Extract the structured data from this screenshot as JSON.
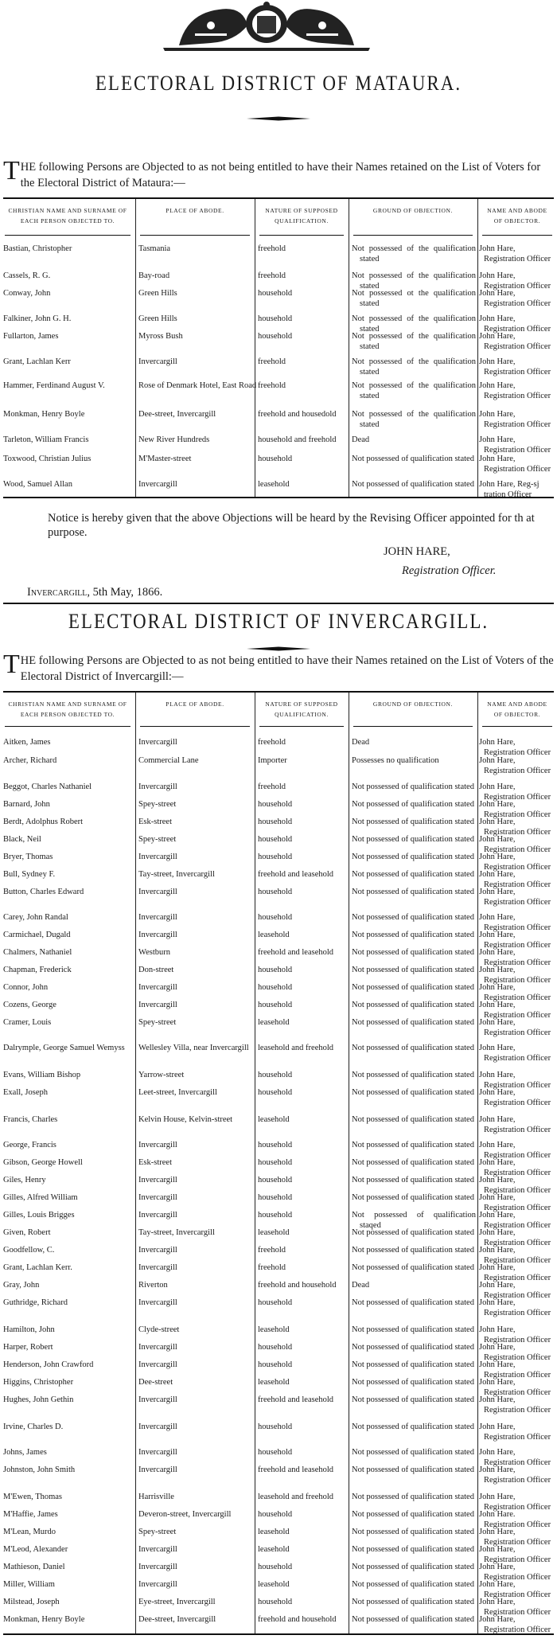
{
  "mataura": {
    "title": "ELECTORAL DISTRICT OF MATAURA.",
    "intro_first": "T",
    "intro_rest": "HE following Persons are Objected to as not being entitled to have their Names retained on the List of Voters for the Electoral District of Mataura:—",
    "headers": [
      "Christian name and surname of each person objected to.",
      "Place of abode.",
      "Nature of supposed qualification.",
      "Ground of objection.",
      "Name and abode of objector."
    ],
    "rows": [
      [
        "Bastian, Christopher",
        "Tasmania",
        "freehold",
        "Not possessed of the qualification stated",
        "John Hare, Registration Officer"
      ],
      [
        "Cassels, R. G.",
        "Bay-road",
        "freehold",
        "Not possessed of the qualification stated",
        "John Hare, Registration Officer"
      ],
      [
        "Conway, John",
        "Green Hills",
        "household",
        "Not possessed ot the qualification stated",
        "John Hare, Registration Officer"
      ],
      [
        "Falkiner, John G. H.",
        "Green Hills",
        "household",
        "Not possessed of the qualification stated",
        "John Hare, Registration Officer"
      ],
      [
        "Fullarton, James",
        "Myross Bush",
        "household",
        "Not possessed of the qualification stated",
        "John Hare, Registration Officer"
      ],
      [
        "Grant, Lachlan Kerr",
        "Invercargill",
        "freehold",
        "Not possessed of the qualification stated",
        "John Hare, Registration Officer"
      ],
      [
        "Hammer, Ferdinand August V.",
        "Rose of Denmark Hotel, East Road",
        "freehold",
        "Not possessed of the qualification stated",
        "John Hare, Registration Officer"
      ],
      [
        "Monkman, Henry Boyle",
        "Dee-street, Invercargill",
        "freehold and housedold",
        "Not possessed of the qualification stated",
        "John Hare, Registration Officer"
      ],
      [
        "Tarleton, William Francis",
        "New River Hundreds",
        "household and freehold",
        "Dead",
        "John Hare, Registration Officer"
      ],
      [
        "Toxwood, Christian Julius",
        "M'Master-street",
        "household",
        "Not possessed of qualification stated",
        "John Hare, Registration Officer"
      ],
      [
        "Wood, Samuel Allan",
        "Invercargill",
        "leasehold",
        "Not possessed of qualification stated",
        "John Hare, Reg-sj tration Officer"
      ]
    ],
    "notice": "Notice is hereby given that the above Objections will be heard by the Revising Officer appointed for th at purpose.",
    "signature": "JOHN HARE,",
    "signature_title": "Registration Officer.",
    "dateline_place": "Invercargill,",
    "dateline_date": "5th May, 1866."
  },
  "invercargill": {
    "title": "ELECTORAL DISTRICT OF INVERCARGILL.",
    "intro_first": "T",
    "intro_rest": "HE following Persons are Objected to as not being entitled to have their Names retained on the List of Voters of the Electoral District of Invercargill:—",
    "headers": [
      "Christian name and surname of each person objected to.",
      "Place of abode.",
      "Nature of supposed qualification.",
      "Ground of objection.",
      "Name and abode of objector."
    ],
    "rows": [
      [
        "Aitken, James",
        "Invercargill",
        "freehold",
        "Dead",
        "John Hare, Registration Officer"
      ],
      [
        "Archer, Richard",
        "Commercial Lane",
        "Importer",
        "Possesses no qualification",
        "John Hare, Registration Officer"
      ],
      [
        "Beggot, Charles Nathaniel",
        "Invercargill",
        "freehold",
        "Not possessed of qualification stated",
        "John Hare, Registration Officer"
      ],
      [
        "Barnard, John",
        "Spey-street",
        "household",
        "Not possessed of qualification stated",
        "John Hare, Registration Officer"
      ],
      [
        "Berdt, Adolphus Robert",
        "Esk-street",
        "household",
        "Not possessed of qualification stated",
        "John Hare, Registration Officer"
      ],
      [
        "Black, Neil",
        "Spey-street",
        "household",
        "Not possessed of qualification stated",
        "John Hare, Registration Officer"
      ],
      [
        "Bryer, Thomas",
        "Invercargill",
        "household",
        "Not possessed of qualification stated",
        "John Hare, Registration Officer"
      ],
      [
        "Bull, Sydney F.",
        "Tay-street, Invercargill",
        "freehold and leasehold",
        "Not possessed of qualification stated",
        "John Hare, Registration Officer"
      ],
      [
        "Button, Charles Edward",
        "Invercargill",
        "household",
        "Not possessed of qualification stated",
        "John Hare, Registration Officer"
      ],
      [
        "Carey, John Randal",
        "Invercargill",
        "household",
        "Not possessed of qualification stated",
        "John Hare, Registration Officer"
      ],
      [
        "Carmichael, Dugald",
        "Invercargill",
        "leasehold",
        "Not possessed of qualification stated",
        "John Hare, Registration Officer"
      ],
      [
        "Chalmers, Nathaniel",
        "Westburn",
        "freehold and leasehold",
        "Not possessed of qualification stated",
        "John Hare, Registration Officer"
      ],
      [
        "Chapman, Frederick",
        "Don-street",
        "household",
        "Not possessed of qualification stated",
        "John Hare, Registration Officer"
      ],
      [
        "Connor, John",
        "Invercargill",
        "household",
        "Not possessed of qualification stated",
        "John Hare, Registration Officer"
      ],
      [
        "Cozens, George",
        "Invercargill",
        "household",
        "Not possessed of qualification stated",
        "John Hare, Registration Officer"
      ],
      [
        "Cramer, Louis",
        "Spey-street",
        "leasehold",
        "Not possessed of qualification stated",
        "John Hare, Registration Officer"
      ],
      [
        "Dalrymple, George Samuel Wemyss",
        "Wellesley Villa, near Invercargill",
        "leasehold and freehold",
        "Not possessed of qualification stated",
        "John Hare, Registration Officer"
      ],
      [
        "Evans, William Bishop",
        "Yarrow-street",
        "household",
        "Not possessed of qualification stated",
        "John Hare, Registration Officer"
      ],
      [
        "Exall, Joseph",
        "Leet-street, Invercargill",
        "household",
        "Not possessed of qualification stated",
        "John Hare, Registration Officer"
      ],
      [
        "Francis, Charles",
        "Kelvin House, Kelvin-street",
        "leasehold",
        "Not possessed of qualification stated",
        "John Hare, Registration Officer"
      ],
      [
        "George, Francis",
        "Invercargill",
        "household",
        "Not possessed of qualification stated",
        "John Hare, Registration Officer"
      ],
      [
        "Gibson, George Howell",
        "Esk-street",
        "household",
        "Not possessed of qualification stated",
        "John Hare, Registration Officer"
      ],
      [
        "Giles, Henry",
        "Invercargill",
        "household",
        "Not possessed of qualification stated",
        "John Hare, Registration Officer"
      ],
      [
        "Gilles, Alfred William",
        "Invercargill",
        "household",
        "Not possessed of qualification stated",
        "John Hare, Registration Officer"
      ],
      [
        "Gilles, Louis Brigges",
        "Invercargill",
        "household",
        "Not possessed of qualification staqed",
        "John Hare, Registration Officer"
      ],
      [
        "Given, Robert",
        "Tay-street, Invercargill",
        "leasehold",
        "Not possessed of qualification stated",
        "John Hare, Registration Officer"
      ],
      [
        "Goodfellow, C.",
        "Invercargill",
        "freehold",
        "Not possessed of qualification stated",
        "John Hare, Registration Officer"
      ],
      [
        "Grant, Lachlan Kerr.",
        "Invercargill",
        "freehold",
        "Not possessed of qualification stated",
        "John Hare, Registration Officer"
      ],
      [
        "Gray, John",
        "Riverton",
        "freehold and household",
        "Dead",
        "John Hare, Registration Officer"
      ],
      [
        "Guthridge, Richard",
        "Invercargill",
        "household",
        "Not possessed of qualification stated",
        "John Hare, Registration Officer"
      ],
      [
        "Hamilton, John",
        "Clyde-street",
        "leasehold",
        "Not possessed of qualification stated",
        "John Hare, Registration Officer"
      ],
      [
        "Harper, Robert",
        "Invercargill",
        "household",
        "Not possessed of qualificatiod stated",
        "John Hare, Registration Officer"
      ],
      [
        "Henderson, John Crawford",
        "Invercargill",
        "household",
        "Not possessed of qualification stated",
        "John Hare, Registration Officer"
      ],
      [
        "Higgins, Christopher",
        "Dee-street",
        "leasehold",
        "Not possessed of qualification stated",
        "John Hare, Registration Officer"
      ],
      [
        "Hughes, John Gethin",
        "Invercargill",
        "freehold and leasehold",
        "Not possessed of qualification stated",
        "John Hare, Registration Officer"
      ],
      [
        "Irvine, Charles D.",
        "Invercargill",
        "household",
        "Not possessed of qualification stated",
        "John Hare, Registration Officer"
      ],
      [
        "Johns, James",
        "Invercargill",
        "household",
        "Not possessed of qualification stated",
        "John Hare, Registration Officer"
      ],
      [
        "Johnston, John Smith",
        "Invercargill",
        "freehold and leasehold",
        "Not possessed of qualification stated",
        "John Hare, Registration Officer"
      ],
      [
        "M'Ewen, Thomas",
        "Harrisville",
        "leasehold and freehold",
        "Not possessed of qualification stated",
        "John Hare, Registration Officer"
      ],
      [
        "M'Haffie, James",
        "Deveron-street, Invercargill",
        "household",
        "Not possessed of qualification stated",
        "John Hare. Registration Officer"
      ],
      [
        "M'Lean, Murdo",
        "Spey-street",
        "leasehold",
        "Not possessed of qualification stated",
        "John Hare, Registration Officer"
      ],
      [
        "M'Leod, Alexander",
        "Invercargill",
        "leasehold",
        "Not possessed of qualification stated",
        "John Hare, Registration Officer"
      ],
      [
        "Mathieson, Daniel",
        "Invercargill",
        "household",
        "Not possessed of qualification stated",
        "John Hare, Registration Officer"
      ],
      [
        "Miller, William",
        "Invercargill",
        "leasehold",
        "Not possessed of qualification stated",
        "John Hare, Registration Officer"
      ],
      [
        "Milstead, Joseph",
        "Eye-street, Invercargill",
        "household",
        "Not possessed of qualification stated",
        "John Hare, Registration Officer"
      ],
      [
        "Monkman, Henry Boyle",
        "Dee-street, Invercargill",
        "freehold and household",
        "Not possessed of qualification stated",
        "John Hare, Registration Officer"
      ]
    ]
  },
  "icons": {
    "crest": "royal-coat-of-arms-icon",
    "ornament": "ornamental-rule-icon"
  }
}
